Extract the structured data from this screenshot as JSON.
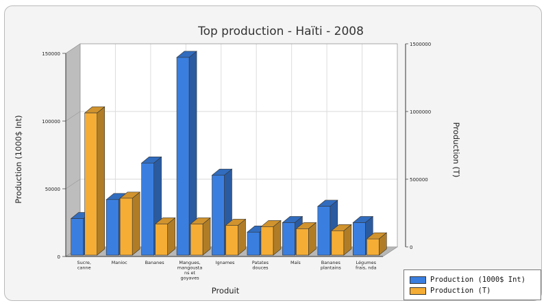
{
  "chart_data": {
    "type": "bar",
    "title": "Top production - Haïti - 2008",
    "xlabel": "Produit",
    "ylabel": "Production (1000$ Int)",
    "y2label": "Production (T)",
    "categories": [
      [
        "Sucre,",
        "canne"
      ],
      [
        "Manioc"
      ],
      [
        "Bananes"
      ],
      [
        "Mangues,",
        "mangousta",
        "ns et",
        "goyaves"
      ],
      [
        "Ignames"
      ],
      [
        "Patates",
        "douces"
      ],
      [
        "Maïs"
      ],
      [
        "Bananes",
        "plantains"
      ],
      [
        "Légumes",
        "frais, nda"
      ]
    ],
    "series": [
      {
        "name": "Production (1000$ Int)",
        "axis": "left",
        "color": "#3a7fe0",
        "values": [
          27000,
          41000,
          68000,
          146000,
          59000,
          17000,
          24000,
          36000,
          24000
        ]
      },
      {
        "name": "Production (T)",
        "axis": "right",
        "color": "#f5ad35",
        "values": [
          1050000,
          420000,
          230000,
          230000,
          220000,
          210000,
          195000,
          180000,
          120000
        ]
      }
    ],
    "yticks": [
      "0",
      "50000",
      "100000",
      "150000"
    ],
    "y2ticks": [
      "0",
      "500000",
      "1000000",
      "1500000"
    ],
    "ylim": [
      0,
      150000
    ],
    "y2lim": [
      0,
      1500000
    ],
    "grid": true,
    "legend_position": "bottom-right"
  }
}
